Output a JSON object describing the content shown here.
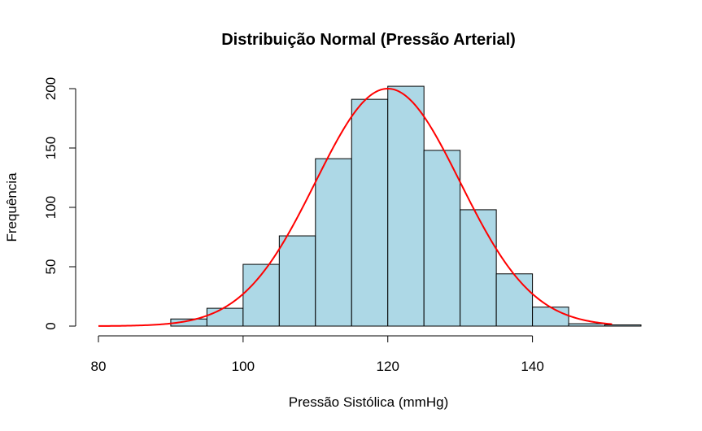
{
  "chart_data": {
    "type": "bar",
    "title": "Distribuição Normal (Pressão Arterial)",
    "xlabel": "Pressão Sistólica (mmHg)",
    "ylabel": "Frequência",
    "xlim": [
      80,
      155
    ],
    "ylim": [
      0,
      200
    ],
    "x_ticks": [
      "80",
      "100",
      "120",
      "140"
    ],
    "y_ticks": [
      "0",
      "50",
      "100",
      "150",
      "200"
    ],
    "bin_edges": [
      80,
      85,
      90,
      95,
      100,
      105,
      110,
      115,
      120,
      125,
      130,
      135,
      140,
      145,
      150,
      155
    ],
    "values": [
      0,
      0,
      6,
      15,
      52,
      76,
      141,
      191,
      202,
      148,
      98,
      44,
      16,
      2,
      1
    ],
    "bar_fill": "#add8e6",
    "bar_stroke": "#000000",
    "series": [
      {
        "type": "line",
        "color": "#ff0000",
        "mean": 120,
        "peak": 200,
        "sd": 10,
        "x_range": [
          80,
          151
        ]
      }
    ]
  }
}
